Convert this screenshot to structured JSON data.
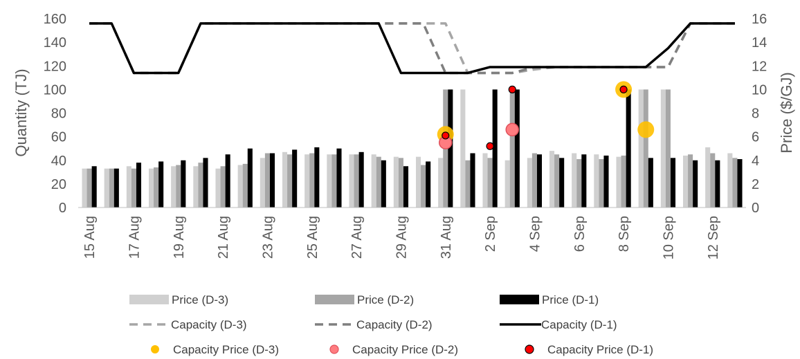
{
  "chart_data": {
    "type": "bar",
    "x_tick_labels": [
      "15 Aug",
      "17 Aug",
      "19 Aug",
      "21 Aug",
      "23 Aug",
      "25 Aug",
      "27 Aug",
      "29 Aug",
      "31 Aug",
      "2 Sep",
      "4 Sep",
      "6 Sep",
      "8 Sep",
      "10 Sep",
      "12 Sep"
    ],
    "y_left": {
      "label": "Quantity (TJ)",
      "ylim": [
        0,
        160
      ],
      "ticks": [
        0,
        20,
        40,
        60,
        80,
        100,
        120,
        140,
        160
      ]
    },
    "y_right": {
      "label": "Price ($/GJ)",
      "ylim": [
        0,
        16
      ],
      "ticks": [
        0,
        2,
        4,
        6,
        8,
        10,
        12,
        14,
        16
      ]
    },
    "price_series": [
      {
        "name": "Price (D-3)",
        "color": "#d0d0d0",
        "values": [
          33,
          33,
          35,
          33,
          35,
          35,
          33,
          36,
          42,
          47,
          45,
          45,
          45,
          45,
          43,
          43,
          42,
          100,
          46,
          40,
          42,
          48,
          46,
          45,
          43,
          100,
          100,
          44,
          51,
          46
        ]
      },
      {
        "name": "Price (D-2)",
        "color": "#a6a6a6",
        "values": [
          33,
          33,
          33,
          34,
          36,
          38,
          35,
          37,
          46,
          45,
          46,
          45,
          45,
          43,
          42,
          36,
          100,
          40,
          42,
          100,
          46,
          45,
          41,
          41,
          44,
          100,
          100,
          45,
          46,
          42
        ]
      },
      {
        "name": "Price (D-1)",
        "color": "#000000",
        "values": [
          35,
          33,
          38,
          39,
          40,
          42,
          45,
          50,
          46,
          49,
          51,
          50,
          47,
          40,
          35,
          39,
          100,
          46,
          100,
          100,
          45,
          42,
          45,
          44,
          100,
          42,
          42,
          40,
          40,
          41
        ]
      }
    ],
    "capacity_series": [
      {
        "name": "Capacity (D-3)",
        "color": "#a6a6a6",
        "dash": "dash",
        "values": [
          156,
          156,
          114,
          114,
          114,
          156,
          156,
          156,
          156,
          156,
          156,
          156,
          156,
          156,
          156,
          156,
          156,
          114,
          114,
          114,
          117,
          119,
          119,
          119,
          119,
          119,
          119,
          156,
          156,
          156
        ]
      },
      {
        "name": "Capacity (D-2)",
        "color": "#7f7f7f",
        "dash": "dash",
        "values": [
          156,
          156,
          114,
          114,
          114,
          156,
          156,
          156,
          156,
          156,
          156,
          156,
          156,
          156,
          156,
          156,
          114,
          114,
          114,
          114,
          119,
          119,
          119,
          119,
          119,
          119,
          119,
          156,
          156,
          156
        ]
      },
      {
        "name": "Capacity (D-1)",
        "color": "#000000",
        "dash": "solid",
        "values": [
          156,
          156,
          114,
          114,
          114,
          156,
          156,
          156,
          156,
          156,
          156,
          156,
          156,
          156,
          114,
          114,
          114,
          114,
          119,
          119,
          119,
          119,
          119,
          119,
          119,
          119,
          135,
          156,
          156,
          156
        ]
      }
    ],
    "capacity_price_series": [
      {
        "name": "Capacity Price (D-3)",
        "fill": "#ffc000",
        "stroke": "#ffc000",
        "points": [
          {
            "day": 16,
            "price": 6.2
          },
          {
            "day": 24,
            "price": 10.0
          },
          {
            "day": 25,
            "price": 6.6
          }
        ]
      },
      {
        "name": "Capacity Price (D-2)",
        "fill": "#ff7c80",
        "stroke": "#e0505a",
        "points": [
          {
            "day": 16,
            "price": 5.5
          },
          {
            "day": 19,
            "price": 6.6
          }
        ]
      },
      {
        "name": "Capacity Price (D-1)",
        "fill": "#ff0000",
        "stroke": "#000000",
        "points": [
          {
            "day": 16,
            "price": 6.1
          },
          {
            "day": 18,
            "price": 5.2
          },
          {
            "day": 19,
            "price": 10.0
          },
          {
            "day": 24,
            "price": 10.0
          }
        ]
      }
    ],
    "grid": false,
    "legend_position": "bottom"
  }
}
